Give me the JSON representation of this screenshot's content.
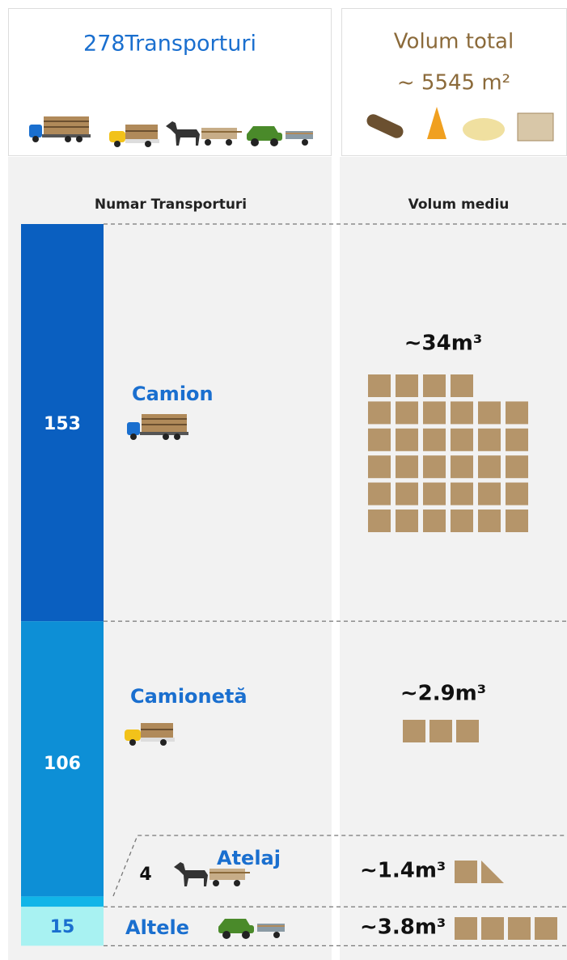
{
  "chart_data": {
    "type": "stacked-bar",
    "title": "278Transporturi",
    "subtitle": [
      "Volum total",
      "~ 5545 m²"
    ],
    "axis_labels": [
      "Numar Transporturi",
      "Volum mediu"
    ],
    "categories": [
      "Camion",
      "Camionetă",
      "Atelaj",
      "Altele"
    ],
    "values": [
      153,
      106,
      4,
      15
    ],
    "colors": [
      "#0a5fc0",
      "#0d8fd6",
      "#11b5e8",
      "#a8f2f2"
    ],
    "volumes": [
      34,
      2.9,
      1.4,
      3.8
    ],
    "volume_labels": [
      "~34m³",
      "~2.9m³",
      "~1.4m³",
      "~3.8m³"
    ]
  }
}
